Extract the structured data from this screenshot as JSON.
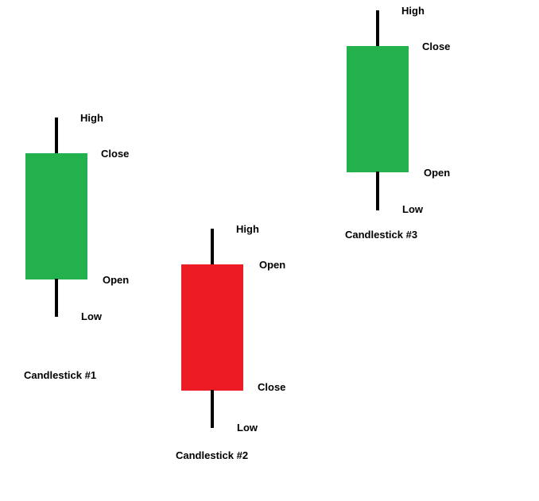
{
  "colors": {
    "bullish": "#22b14c",
    "bearish": "#ed1c24",
    "wick": "#000000",
    "background": "#ffffff"
  },
  "candles": [
    {
      "id": "candlestick-1",
      "direction": "bullish",
      "caption": "Candlestick #1",
      "high_label": "High",
      "close_label": "Close",
      "open_label": "Open",
      "low_label": "Low"
    },
    {
      "id": "candlestick-2",
      "direction": "bearish",
      "caption": "Candlestick #2",
      "high_label": "High",
      "open_label": "Open",
      "close_label": "Close",
      "low_label": "Low"
    },
    {
      "id": "candlestick-3",
      "direction": "bullish",
      "caption": "Candlestick #3",
      "high_label": "High",
      "close_label": "Close",
      "open_label": "Open",
      "low_label": "Low"
    }
  ]
}
